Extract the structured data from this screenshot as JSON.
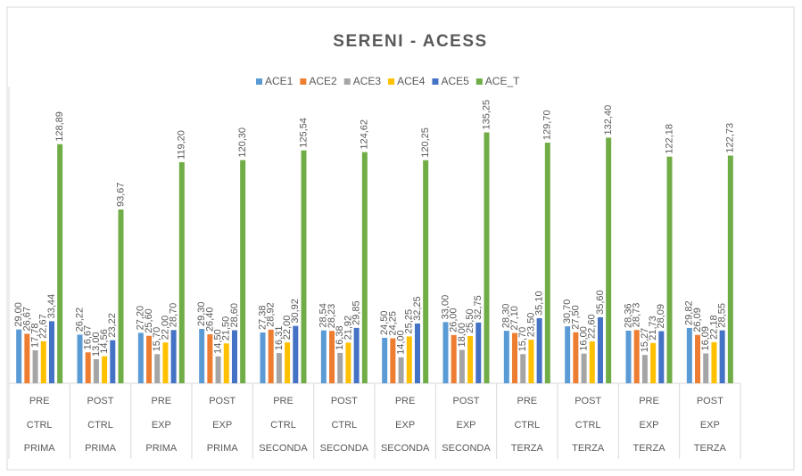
{
  "chart_data": {
    "type": "bar",
    "title": "SERENI - ACESS",
    "categories": [
      [
        "PRE",
        "CTRL",
        "PRIMA"
      ],
      [
        "POST",
        "CTRL",
        "PRIMA"
      ],
      [
        "PRE",
        "EXP",
        "PRIMA"
      ],
      [
        "POST",
        "EXP",
        "PRIMA"
      ],
      [
        "PRE",
        "CTRL",
        "SECONDA"
      ],
      [
        "POST",
        "CTRL",
        "SECONDA"
      ],
      [
        "PRE",
        "EXP",
        "SECONDA"
      ],
      [
        "POST",
        "EXP",
        "SECONDA"
      ],
      [
        "PRE",
        "CTRL",
        "TERZA"
      ],
      [
        "POST",
        "CTRL",
        "TERZA"
      ],
      [
        "PRE",
        "EXP",
        "TERZA"
      ],
      [
        "POST",
        "EXP",
        "TERZA"
      ]
    ],
    "ylim": [
      0,
      160
    ],
    "legend": "top",
    "series": [
      {
        "name": "ACE1",
        "color": "#5b9bd5",
        "values": [
          29.0,
          26.22,
          27.2,
          29.3,
          27.38,
          28.54,
          24.5,
          33.0,
          28.3,
          30.7,
          28.36,
          29.82
        ],
        "value_labels": [
          "29,00",
          "26,22",
          "27,20",
          "29,30",
          "27,38",
          "28,54",
          "24,50",
          "33,00",
          "28,30",
          "30,70",
          "28,36",
          "29,82"
        ]
      },
      {
        "name": "ACE2",
        "color": "#ed7d31",
        "values": [
          26.67,
          16.67,
          25.6,
          26.4,
          28.92,
          28.23,
          24.25,
          26.0,
          27.1,
          27.5,
          28.73,
          26.09
        ],
        "value_labels": [
          "26,67",
          "16,67",
          "25,60",
          "26,40",
          "28,92",
          "28,23",
          "24,25",
          "26,00",
          "27,10",
          "27,50",
          "28,73",
          "26,09"
        ]
      },
      {
        "name": "ACE3",
        "color": "#a5a5a5",
        "values": [
          17.78,
          13.0,
          15.7,
          14.5,
          16.31,
          16.38,
          14.0,
          18.0,
          15.7,
          16.0,
          15.27,
          16.09
        ],
        "value_labels": [
          "17,78",
          "13,00",
          "15,70",
          "14,50",
          "16,31",
          "16,38",
          "14,00",
          "18,00",
          "15,70",
          "16,00",
          "15,27",
          "16,09"
        ]
      },
      {
        "name": "ACE4",
        "color": "#ffc000",
        "values": [
          22.67,
          14.56,
          22.0,
          21.5,
          22.0,
          21.92,
          25.25,
          25.5,
          23.5,
          22.6,
          21.73,
          22.18
        ],
        "value_labels": [
          "22,67",
          "14,56",
          "22,00",
          "21,50",
          "22,00",
          "21,92",
          "25,25",
          "25,50",
          "23,50",
          "22,60",
          "21,73",
          "22,18"
        ]
      },
      {
        "name": "ACE5",
        "color": "#4472c4",
        "values": [
          33.44,
          23.22,
          28.7,
          28.6,
          30.92,
          29.85,
          32.25,
          32.75,
          35.1,
          35.6,
          28.09,
          28.55
        ],
        "value_labels": [
          "33,44",
          "23,22",
          "28,70",
          "28,60",
          "30,92",
          "29,85",
          "32,25",
          "32,75",
          "35,10",
          "35,60",
          "28,09",
          "28,55"
        ]
      },
      {
        "name": "ACE_T",
        "color": "#70ad47",
        "values": [
          128.89,
          93.67,
          119.2,
          120.3,
          125.54,
          124.62,
          120.25,
          135.25,
          129.7,
          132.4,
          122.18,
          122.73
        ],
        "value_labels": [
          "128,89",
          "93,67",
          "119,20",
          "120,30",
          "125,54",
          "124,62",
          "120,25",
          "135,25",
          "129,70",
          "132,40",
          "122,18",
          "122,73"
        ]
      }
    ]
  }
}
